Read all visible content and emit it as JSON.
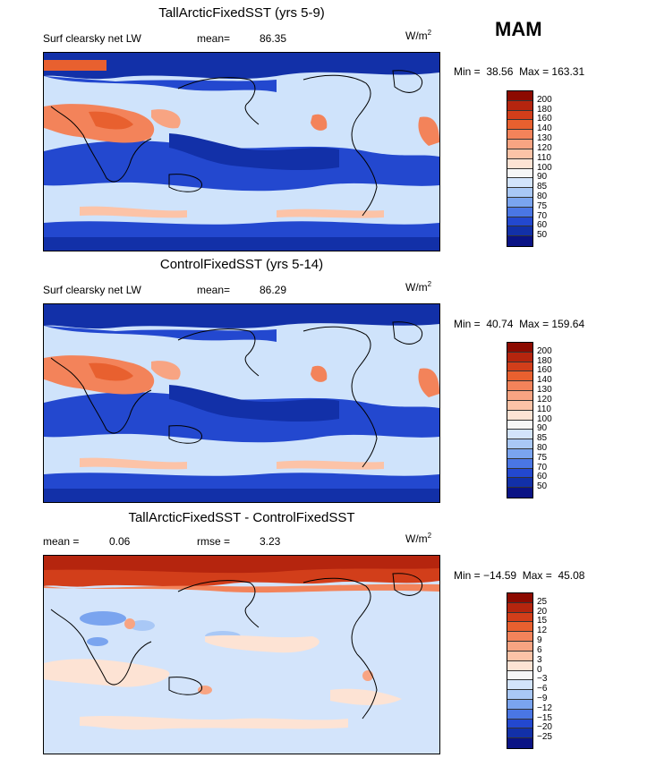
{
  "season": "MAM",
  "units": "W/m",
  "units_sup": "2",
  "colors": {
    "deep_blue": "#0a1e9a",
    "blue": "#2e5ae0",
    "mid_blue": "#6d96ee",
    "light_blue": "#cfe3fb",
    "pale": "#f4f4f4",
    "peach": "#fcd7c4",
    "salmon": "#f39a78",
    "red": "#e0552e",
    "dark_red": "#b5250e"
  },
  "panels": [
    {
      "title": "TallArcticFixedSST (yrs 5-9)",
      "variable": "Surf clearsky net LW",
      "stat_label": "mean=",
      "stat_value": "86.35",
      "min_label": "Min =",
      "min_value": "38.56",
      "max_label": "Max =",
      "max_value": "163.31",
      "colorbar": {
        "levels": [
          "200",
          "180",
          "160",
          "140",
          "130",
          "120",
          "110",
          "100",
          "90",
          "85",
          "80",
          "75",
          "70",
          "60",
          "50"
        ],
        "colors": [
          "#8c0a00",
          "#b5250e",
          "#d23e1a",
          "#e8602f",
          "#f3835a",
          "#f8a482",
          "#fcc3a7",
          "#fde3d4",
          "#f6f6f6",
          "#d3e4fb",
          "#a9c8f6",
          "#7aa4ef",
          "#4a76e4",
          "#2348cf",
          "#1230a8",
          "#0a1385"
        ]
      }
    },
    {
      "title": "ControlFixedSST (yrs 5-14)",
      "variable": "Surf clearsky net LW",
      "stat_label": "mean=",
      "stat_value": "86.29",
      "min_label": "Min =",
      "min_value": "40.74",
      "max_label": "Max =",
      "max_value": "159.64",
      "colorbar": {
        "levels": [
          "200",
          "180",
          "160",
          "140",
          "130",
          "120",
          "110",
          "100",
          "90",
          "85",
          "80",
          "75",
          "70",
          "60",
          "50"
        ],
        "colors": [
          "#8c0a00",
          "#b5250e",
          "#d23e1a",
          "#e8602f",
          "#f3835a",
          "#f8a482",
          "#fcc3a7",
          "#fde3d4",
          "#f6f6f6",
          "#d3e4fb",
          "#a9c8f6",
          "#7aa4ef",
          "#4a76e4",
          "#2348cf",
          "#1230a8",
          "#0a1385"
        ]
      }
    },
    {
      "title": "TallArcticFixedSST - ControlFixedSST",
      "mean_label": "mean =",
      "mean_value": "0.06",
      "rmse_label": "rmse =",
      "rmse_value": "3.23",
      "min_label": "Min =",
      "min_value": "−14.59",
      "max_label": "Max =",
      "max_value": "45.08",
      "colorbar": {
        "levels": [
          "25",
          "20",
          "15",
          "12",
          "9",
          "6",
          "3",
          "0",
          "−3",
          "−6",
          "−9",
          "−12",
          "−15",
          "−20",
          "−25"
        ],
        "colors": [
          "#8c0a00",
          "#b5250e",
          "#d23e1a",
          "#e8602f",
          "#f3835a",
          "#f8a482",
          "#fcc3a7",
          "#fde3d4",
          "#f6f6f6",
          "#d3e4fb",
          "#a9c8f6",
          "#7aa4ef",
          "#4a76e4",
          "#2348cf",
          "#1230a8",
          "#0a1385"
        ]
      }
    }
  ]
}
